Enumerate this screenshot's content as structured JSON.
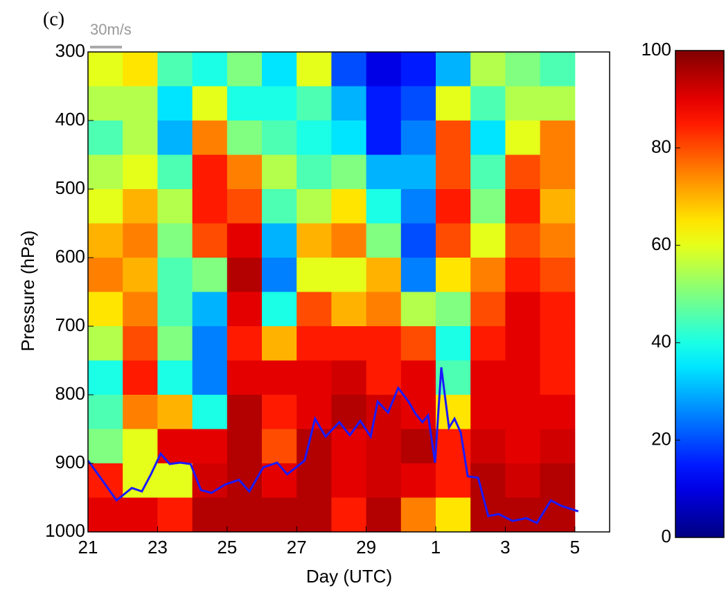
{
  "chart_data": {
    "type": "heatmap",
    "panel_label": "(c)",
    "reference_vector": "30m/s",
    "xlabel": "Day (UTC)",
    "ylabel": "Pressure (hPa)",
    "xlim": [
      21,
      36
    ],
    "xticks": [
      21,
      23,
      25,
      27,
      29,
      {
        "value": 31,
        "label": "1"
      },
      {
        "value": 33,
        "label": "3"
      },
      {
        "value": 35,
        "label": "5"
      }
    ],
    "ylim": [
      1000,
      300
    ],
    "yticks": [
      300,
      400,
      500,
      600,
      700,
      800,
      900,
      1000
    ],
    "colormap": "jet",
    "clim": [
      0,
      100
    ],
    "cticks": [
      0,
      20,
      40,
      60,
      80,
      100
    ],
    "x": [
      21.5,
      22.5,
      23.5,
      24.5,
      25.5,
      26.5,
      27.5,
      28.5,
      29.5,
      30.5,
      31.5,
      32.5,
      33.5,
      34.5
    ],
    "y": [
      325,
      375,
      425,
      475,
      525,
      575,
      625,
      675,
      725,
      775,
      825,
      875,
      925,
      975
    ],
    "values": [
      [
        60,
        65,
        45,
        40,
        50,
        35,
        60,
        20,
        10,
        15,
        30,
        55,
        50,
        45
      ],
      [
        55,
        55,
        35,
        60,
        40,
        40,
        45,
        30,
        15,
        20,
        60,
        45,
        55,
        55
      ],
      [
        45,
        55,
        30,
        75,
        50,
        45,
        40,
        35,
        15,
        25,
        80,
        35,
        60,
        75
      ],
      [
        55,
        60,
        45,
        85,
        75,
        55,
        45,
        50,
        30,
        30,
        80,
        45,
        80,
        75
      ],
      [
        60,
        70,
        55,
        85,
        80,
        45,
        55,
        65,
        40,
        25,
        85,
        50,
        85,
        70
      ],
      [
        70,
        75,
        50,
        80,
        90,
        30,
        70,
        75,
        50,
        20,
        80,
        60,
        80,
        75
      ],
      [
        75,
        70,
        45,
        50,
        95,
        25,
        60,
        60,
        70,
        25,
        65,
        75,
        85,
        80
      ],
      [
        65,
        75,
        45,
        30,
        90,
        40,
        80,
        70,
        75,
        55,
        50,
        80,
        90,
        85
      ],
      [
        55,
        80,
        50,
        25,
        85,
        70,
        85,
        85,
        85,
        80,
        40,
        85,
        90,
        85
      ],
      [
        40,
        85,
        40,
        25,
        90,
        90,
        90,
        92,
        85,
        90,
        45,
        90,
        90,
        85
      ],
      [
        45,
        75,
        70,
        40,
        95,
        85,
        90,
        95,
        92,
        90,
        65,
        90,
        90,
        90
      ],
      [
        50,
        60,
        90,
        90,
        95,
        80,
        95,
        90,
        92,
        95,
        85,
        92,
        90,
        92
      ],
      [
        85,
        60,
        60,
        92,
        95,
        90,
        95,
        90,
        92,
        90,
        85,
        95,
        92,
        95
      ],
      [
        90,
        90,
        85,
        95,
        95,
        95,
        95,
        85,
        95,
        75,
        65,
        95,
        95,
        95
      ]
    ],
    "series": [
      {
        "color": "#1a1aff",
        "x": [
          21.0,
          21.36,
          21.82,
          22.26,
          22.55,
          22.81,
          23.09,
          23.35,
          23.65,
          23.95,
          24.25,
          24.55,
          24.94,
          25.34,
          25.64,
          26.04,
          26.44,
          26.73,
          27.23,
          27.53,
          27.83,
          28.23,
          28.53,
          28.83,
          29.13,
          29.33,
          29.63,
          29.92,
          30.22,
          30.42,
          30.62,
          30.78,
          30.98,
          31.16,
          31.38,
          31.54,
          31.72,
          31.92,
          32.22,
          32.51,
          32.81,
          33.21,
          33.61,
          33.91,
          34.31,
          34.61,
          35.1
        ],
        "values": [
          896,
          921,
          954,
          936,
          941,
          916,
          886,
          901,
          899,
          901,
          939,
          943,
          931,
          924,
          941,
          906,
          899,
          916,
          896,
          835,
          861,
          840,
          859,
          838,
          861,
          810,
          826,
          790,
          810,
          828,
          840,
          830,
          899,
          760,
          848,
          835,
          855,
          919,
          921,
          977,
          974,
          984,
          980,
          987,
          954,
          962,
          970
        ]
      }
    ]
  }
}
